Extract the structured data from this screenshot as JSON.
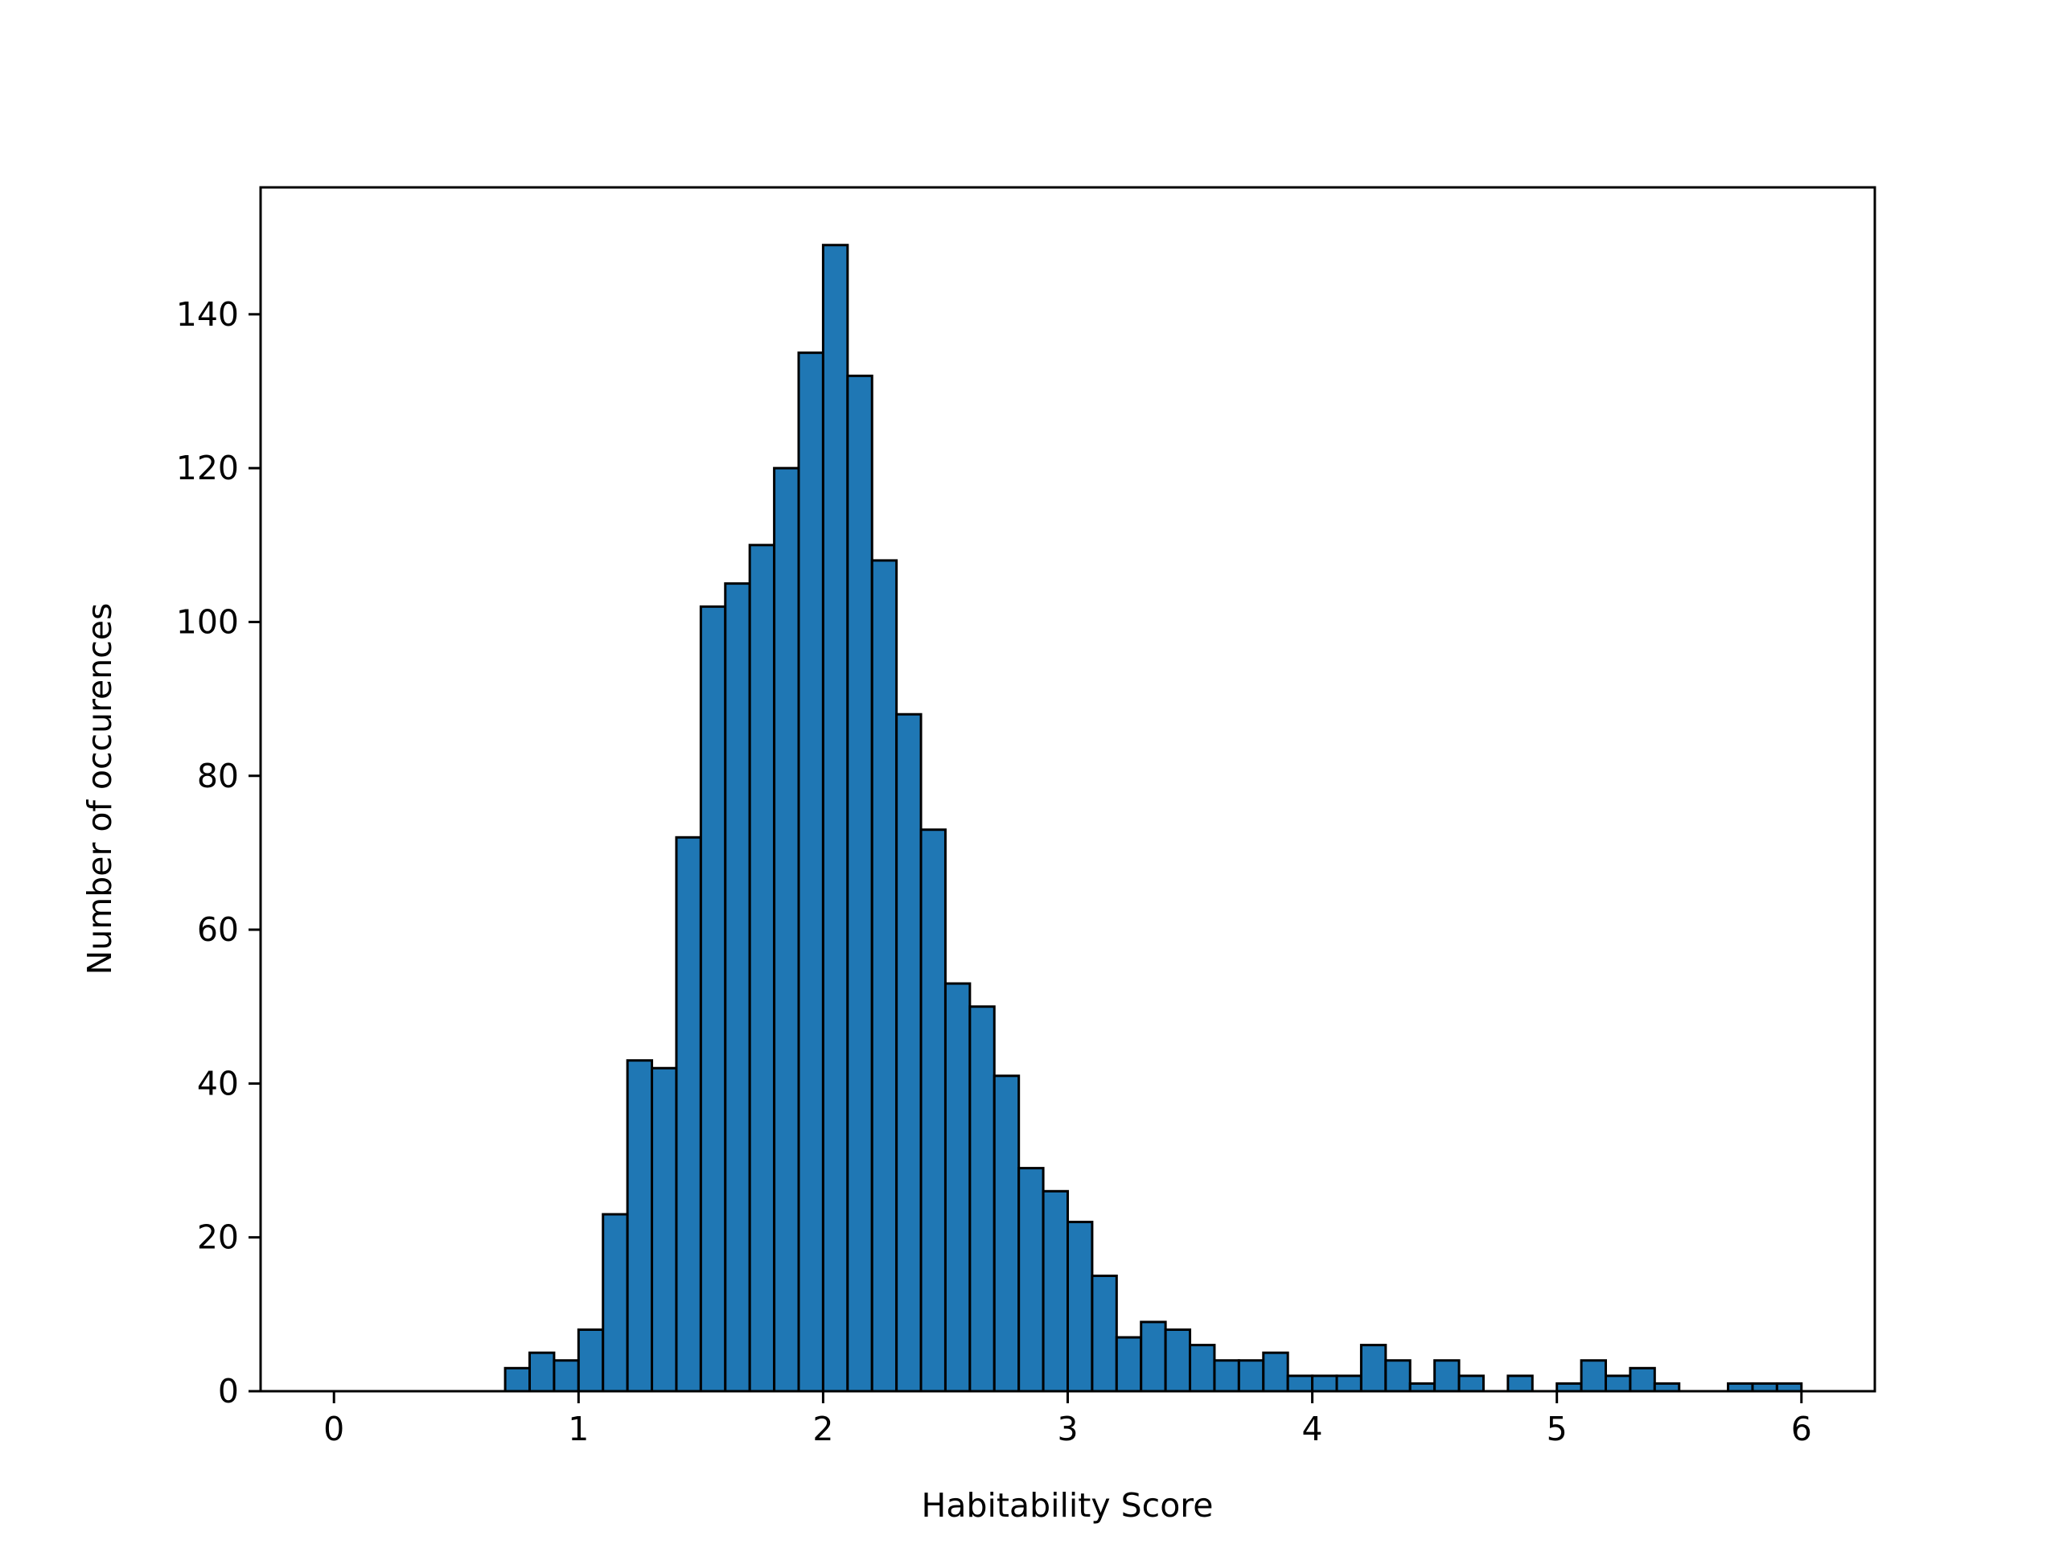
{
  "chart_data": {
    "type": "bar",
    "xlabel": "Habitability Score",
    "ylabel": "Number of occurences",
    "xlim": [
      -0.3,
      6.3
    ],
    "ylim": [
      0,
      156.5
    ],
    "xticks": [
      0,
      1,
      2,
      3,
      4,
      5,
      6
    ],
    "yticks": [
      0,
      20,
      40,
      60,
      80,
      100,
      120,
      140
    ],
    "bin_start": 0,
    "bin_width": 0.1,
    "values": [
      0,
      0,
      0,
      0,
      0,
      0,
      0,
      3,
      5,
      4,
      8,
      23,
      43,
      42,
      72,
      102,
      105,
      110,
      120,
      135,
      149,
      132,
      108,
      88,
      73,
      53,
      50,
      41,
      29,
      26,
      22,
      15,
      7,
      9,
      8,
      6,
      4,
      4,
      5,
      2,
      2,
      2,
      6,
      4,
      1,
      4,
      2,
      0,
      2,
      0,
      1,
      4,
      2,
      3,
      1,
      0,
      0,
      1,
      1,
      1
    ],
    "grid": false,
    "colors": {
      "bar_fill": "#1f77b4",
      "bar_edge": "#000000",
      "axis": "#000000"
    }
  }
}
